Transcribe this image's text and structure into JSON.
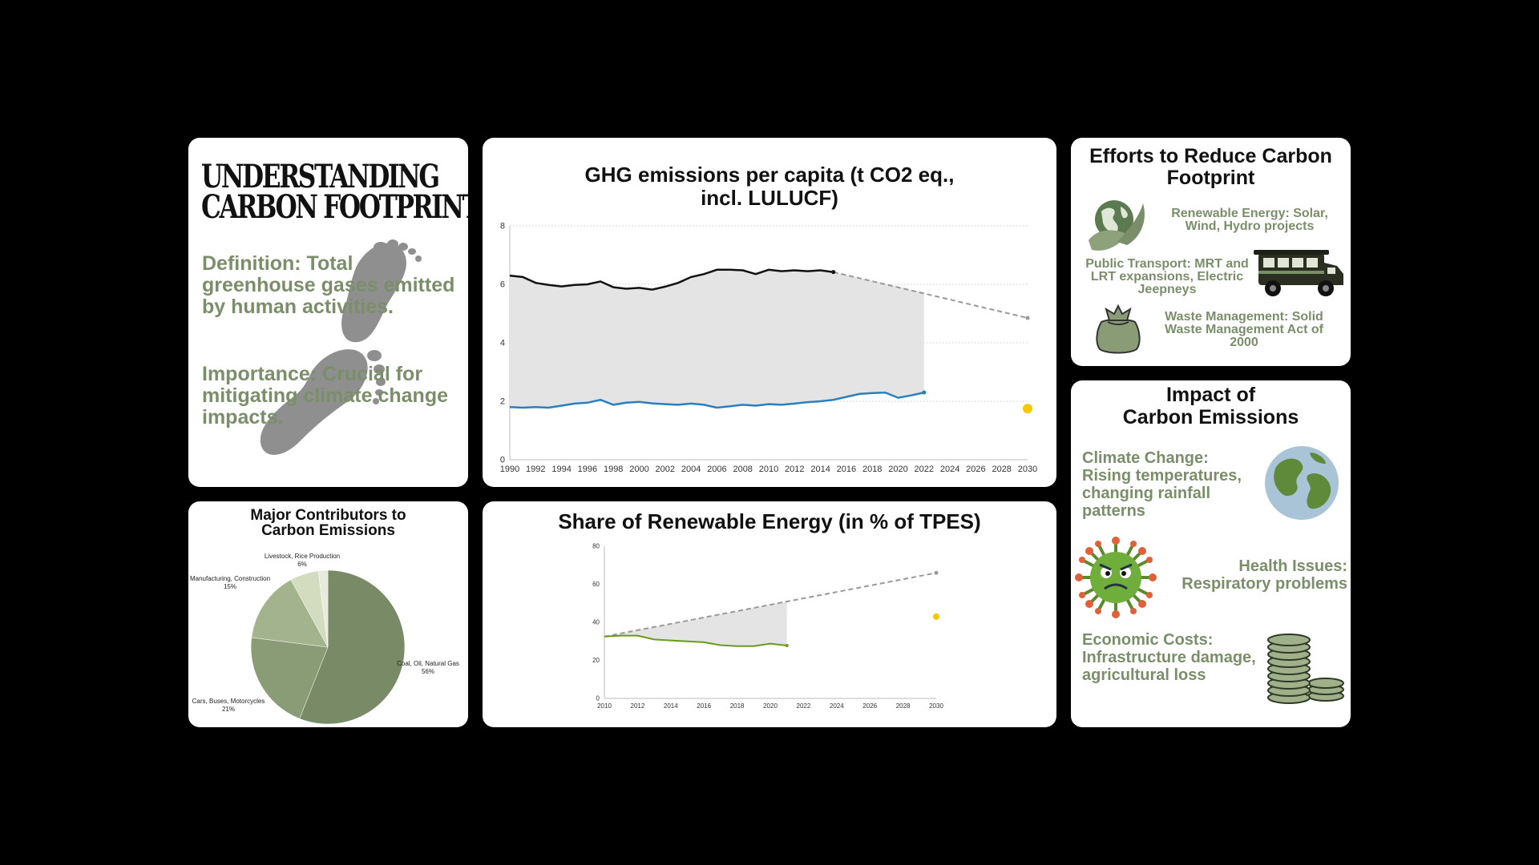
{
  "understanding": {
    "title_line1": "UNDERSTANDING",
    "title_line2": "CARBON FOOTPRINT",
    "definition": "Definition: Total greenhouse gases emitted by human activities.",
    "importance": "Importance: Crucial for mitigating climate change impacts."
  },
  "efforts": {
    "title": "Efforts to Reduce Carbon Footprint",
    "items": [
      {
        "text": "Renewable Energy: Solar, Wind, Hydro projects",
        "icon": "globe-leaf-icon"
      },
      {
        "text": "Public Transport: MRT and LRT expansions, Electric Jeepneys",
        "icon": "jeepney-icon"
      },
      {
        "text": "Waste Management: Solid Waste Management Act of 2000",
        "icon": "trash-bag-icon"
      }
    ]
  },
  "impact": {
    "title_line1": "Impact of",
    "title_line2": "Carbon Emissions",
    "items": [
      {
        "text": "Climate Change: Rising temperatures, changing rainfall patterns",
        "icon": "earth-icon"
      },
      {
        "text": "Health Issues: Respiratory problems",
        "icon": "virus-icon"
      },
      {
        "text": "Economic Costs: Infrastructure damage, agricultural loss",
        "icon": "coins-icon"
      }
    ]
  },
  "colors": {
    "accent_green": "#7b8e6a",
    "ghg_top_line": "#111111",
    "ghg_bottom_line": "#2a7fbf",
    "renewable_line": "#6b9a1e",
    "target_dot": "#f5c800",
    "projection": "#999999",
    "gap_fill": "#e4e4e4"
  },
  "chart_data": [
    {
      "id": "ghg",
      "type": "line",
      "title": "GHG emissions per capita (t CO2 eq., incl. LULUCF)",
      "x_ticks": [
        1990,
        1992,
        1994,
        1996,
        1998,
        2000,
        2002,
        2004,
        2006,
        2008,
        2010,
        2012,
        2014,
        2016,
        2018,
        2020,
        2022,
        2024,
        2026,
        2028,
        2030
      ],
      "y_ticks": [
        0,
        2,
        4,
        6,
        8
      ],
      "xlim": [
        1990,
        2030
      ],
      "ylim": [
        0,
        8
      ],
      "grid": true,
      "series": [
        {
          "x": [
            1990,
            1991,
            1992,
            1993,
            1994,
            1995,
            1996,
            1997,
            1998,
            1999,
            2000,
            2001,
            2002,
            2003,
            2004,
            2005,
            2006,
            2007,
            2008,
            2009,
            2010,
            2011,
            2012,
            2013,
            2014,
            2015
          ],
          "values": [
            6.3,
            6.25,
            6.05,
            5.98,
            5.93,
            5.98,
            6.0,
            6.1,
            5.9,
            5.85,
            5.88,
            5.82,
            5.92,
            6.05,
            6.25,
            6.35,
            6.5,
            6.5,
            6.48,
            6.35,
            6.5,
            6.45,
            6.48,
            6.45,
            6.48,
            6.42
          ]
        },
        {
          "x": [
            1990,
            1991,
            1992,
            1993,
            1994,
            1995,
            1996,
            1997,
            1998,
            1999,
            2000,
            2001,
            2002,
            2003,
            2004,
            2005,
            2006,
            2007,
            2008,
            2009,
            2010,
            2011,
            2012,
            2013,
            2014,
            2015,
            2016,
            2017,
            2018,
            2019,
            2020,
            2021,
            2022
          ],
          "values": [
            1.8,
            1.78,
            1.8,
            1.78,
            1.85,
            1.92,
            1.95,
            2.05,
            1.88,
            1.95,
            1.98,
            1.93,
            1.9,
            1.88,
            1.92,
            1.88,
            1.78,
            1.83,
            1.88,
            1.85,
            1.9,
            1.88,
            1.92,
            1.97,
            2.0,
            2.05,
            2.15,
            2.25,
            2.28,
            2.3,
            2.12,
            2.2,
            2.3
          ]
        }
      ],
      "projection": {
        "x": [
          2015,
          2030
        ],
        "values": [
          6.42,
          4.85
        ]
      },
      "gap_area_end": {
        "x": 2022,
        "value": 5.72
      },
      "target_point": {
        "x": 2030,
        "value": 1.75
      }
    },
    {
      "id": "renewable",
      "type": "line",
      "title": "Share of Renewable Energy (in % of TPES)",
      "x_ticks": [
        2010,
        2012,
        2014,
        2016,
        2018,
        2020,
        2022,
        2024,
        2026,
        2028,
        2030
      ],
      "y_ticks": [
        0,
        20,
        40,
        60,
        80
      ],
      "xlim": [
        2010,
        2030
      ],
      "ylim": [
        0,
        80
      ],
      "grid": false,
      "series": [
        {
          "x": [
            2010,
            2011,
            2012,
            2013,
            2014,
            2015,
            2016,
            2017,
            2018,
            2019,
            2020,
            2021
          ],
          "values": [
            32.5,
            33,
            33,
            31,
            30.5,
            30,
            29.5,
            28,
            27.5,
            27.5,
            28.8,
            27.8
          ]
        }
      ],
      "projection": {
        "x": [
          2010,
          2030
        ],
        "values": [
          32.5,
          66
        ]
      },
      "gap_area_end": {
        "x": 2021,
        "value": 51
      },
      "target_point": {
        "x": 2030,
        "value": 43
      }
    },
    {
      "id": "contributors",
      "type": "pie",
      "title": "Major Contributors to Carbon Emissions",
      "slices": [
        {
          "name": "Coal, Oil, Natural Gas",
          "pct_label": "56%",
          "value": 56,
          "color": "#788a66"
        },
        {
          "name": "Cars, Buses, Motorcycles",
          "pct_label": "21%",
          "value": 21,
          "color": "#8a9c75"
        },
        {
          "name": "Manufacturing, Construction",
          "pct_label": "15%",
          "value": 15,
          "color": "#a3b38e"
        },
        {
          "name": "Livestock, Rice Production",
          "pct_label": "6%",
          "value": 6,
          "color": "#d3dcbf"
        },
        {
          "name": "",
          "pct_label": "",
          "value": 2,
          "color": "#e6ebdc"
        }
      ]
    }
  ]
}
